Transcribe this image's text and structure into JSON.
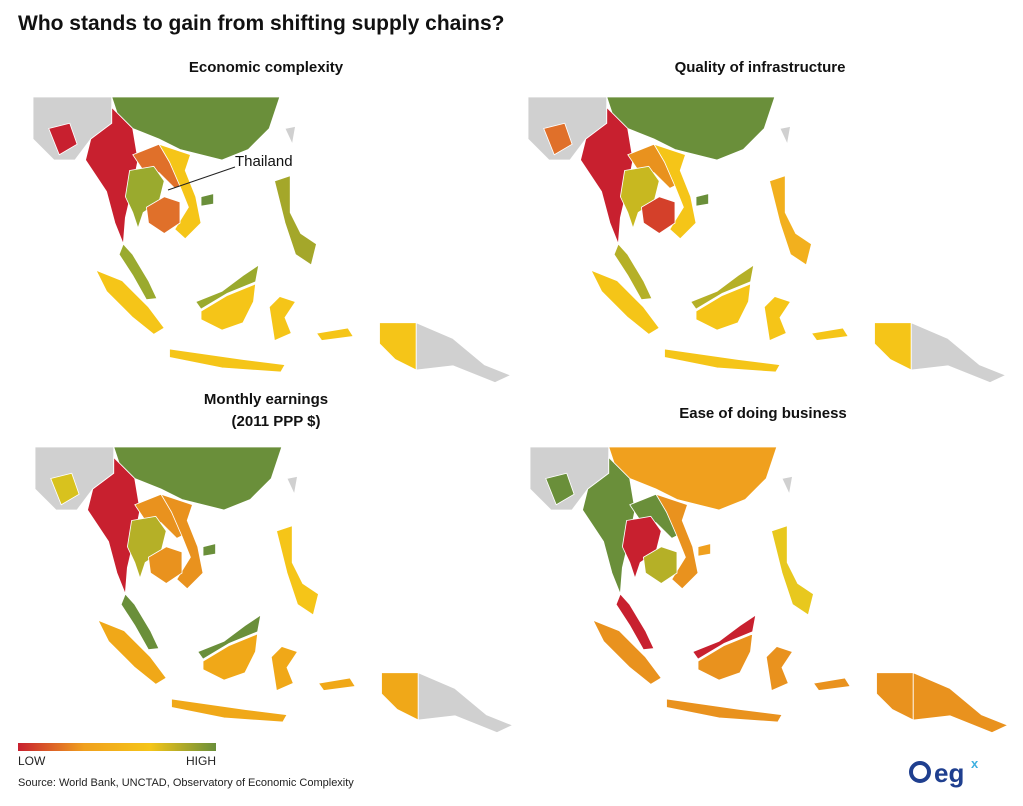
{
  "title": "Who stands to gain from shifting supply chains?",
  "maps": [
    {
      "title": "Economic complexity",
      "annotation": "Thailand",
      "region_colors": [
        "#6a8f3a",
        "#d0d0d0",
        "#c8202f",
        "#c8202f",
        "#e0702a",
        "#f5c518",
        "#9aaa2e",
        "#e0702a",
        "#9aaa2e",
        "#f5c518",
        "#a4a72a",
        "#d0d0d0",
        "#d0d0d0"
      ]
    },
    {
      "title": "Quality of infrastructure",
      "region_colors": [
        "#6a8f3a",
        "#d0d0d0",
        "#e0702a",
        "#c8202f",
        "#e9921e",
        "#f5c518",
        "#c8b820",
        "#d4402a",
        "#b5b027",
        "#f5c518",
        "#f2b01e",
        "#d0d0d0",
        "#d0d0d0"
      ]
    },
    {
      "title": "Monthly earnings",
      "subtitle": "(2011 PPP $)",
      "region_colors": [
        "#6a8f3a",
        "#d0d0d0",
        "#d8c21e",
        "#c8202f",
        "#e9921e",
        "#e9921e",
        "#b5b027",
        "#e9921e",
        "#6a8f3a",
        "#f0a818",
        "#f5c518",
        "#d0d0d0",
        "#d0d0d0"
      ]
    },
    {
      "title": "Ease of doing business",
      "region_colors": [
        "#f0a01e",
        "#d0d0d0",
        "#6a8f3a",
        "#6a8f3a",
        "#6a8f3a",
        "#e9921e",
        "#c8202f",
        "#b5b027",
        "#c8202f",
        "#e9921e",
        "#e8c81e",
        "#e9921e",
        "#d0d0d0"
      ]
    }
  ],
  "legend": {
    "low": "LOW",
    "high": "HIGH",
    "colors": [
      "#c8202f",
      "#f0a01e",
      "#f5c518",
      "#6a8f3a"
    ]
  },
  "source": "Source: World Bank, UNCTAD, Observatory of Economic Complexity",
  "logo": {
    "text": "eg",
    "sup": "x"
  }
}
